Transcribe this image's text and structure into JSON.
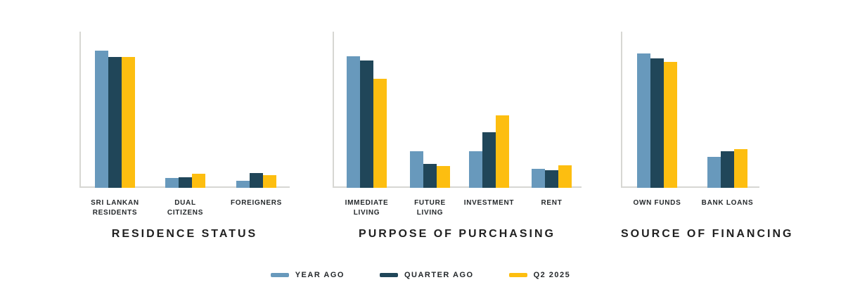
{
  "page": {
    "background": "#ffffff"
  },
  "colors": {
    "year_ago": "#6899BC",
    "quarter_ago": "#204659",
    "q2_2025": "#FDBE10",
    "axis": "#D7D7D3",
    "text": "#24282B"
  },
  "legend": {
    "items": [
      {
        "label": "YEAR AGO",
        "color": "#6899BC"
      },
      {
        "label": "QUARTER AGO",
        "color": "#204659"
      },
      {
        "label": "Q2 2025",
        "color": "#FDBE10"
      }
    ]
  },
  "chart_data": [
    {
      "type": "bar",
      "title": "RESIDENCE STATUS",
      "categories": [
        "SRI LANKAN RESIDENTS",
        "DUAL CITIZENS",
        "FOREIGNERS"
      ],
      "categories_lines": [
        [
          "SRI LANKAN",
          "RESIDENTS"
        ],
        [
          "DUAL",
          "CITIZENS"
        ],
        [
          "FOREIGNERS"
        ]
      ],
      "series": [
        {
          "name": "YEAR AGO",
          "color": "#6899BC",
          "values": [
            88,
            6.3,
            4.4
          ]
        },
        {
          "name": "QUARTER AGO",
          "color": "#204659",
          "values": [
            84,
            6.6,
            9.3
          ]
        },
        {
          "name": "Q2 2025",
          "color": "#FDBE10",
          "values": [
            84,
            9.0,
            8.1
          ]
        }
      ],
      "ylabel": "",
      "xlabel": "",
      "unit": "percent (estimated from bar heights)",
      "ylim": [
        0,
        100
      ],
      "grid": false,
      "legend_position": "bottom-shared"
    },
    {
      "type": "bar",
      "title": "PURPOSE OF PURCHASING",
      "categories": [
        "IMMEDIATE LIVING",
        "FUTURE LIVING",
        "INVESTMENT",
        "RENT"
      ],
      "categories_lines": [
        [
          "IMMEDIATE",
          "LIVING"
        ],
        [
          "FUTURE",
          "LIVING"
        ],
        [
          "INVESTMENT"
        ],
        [
          "RENT"
        ]
      ],
      "series": [
        {
          "name": "YEAR AGO",
          "color": "#6899BC",
          "values": [
            59,
            16.4,
            16.4,
            8.4
          ]
        },
        {
          "name": "QUARTER AGO",
          "color": "#204659",
          "values": [
            57,
            10.7,
            25.0,
            7.9
          ]
        },
        {
          "name": "Q2 2025",
          "color": "#FDBE10",
          "values": [
            48.8,
            9.8,
            32.4,
            10.0
          ]
        }
      ],
      "ylabel": "",
      "xlabel": "",
      "unit": "percent (estimated from bar heights)",
      "ylim": [
        0,
        70
      ],
      "grid": false,
      "legend_position": "bottom-shared"
    },
    {
      "type": "bar",
      "title": "SOURCE OF FINANCING",
      "categories": [
        "OWN FUNDS",
        "BANK LOANS"
      ],
      "categories_lines": [
        [
          "OWN FUNDS"
        ],
        [
          "BANK LOANS"
        ]
      ],
      "series": [
        {
          "name": "YEAR AGO",
          "color": "#6899BC",
          "values": [
            81,
            18.6
          ]
        },
        {
          "name": "QUARTER AGO",
          "color": "#204659",
          "values": [
            78,
            21.9
          ]
        },
        {
          "name": "Q2 2025",
          "color": "#FDBE10",
          "values": [
            75.8,
            23.4
          ]
        }
      ],
      "ylabel": "",
      "xlabel": "",
      "unit": "percent (estimated from bar heights)",
      "ylim": [
        0,
        94
      ],
      "grid": false,
      "legend_position": "bottom-shared"
    }
  ]
}
